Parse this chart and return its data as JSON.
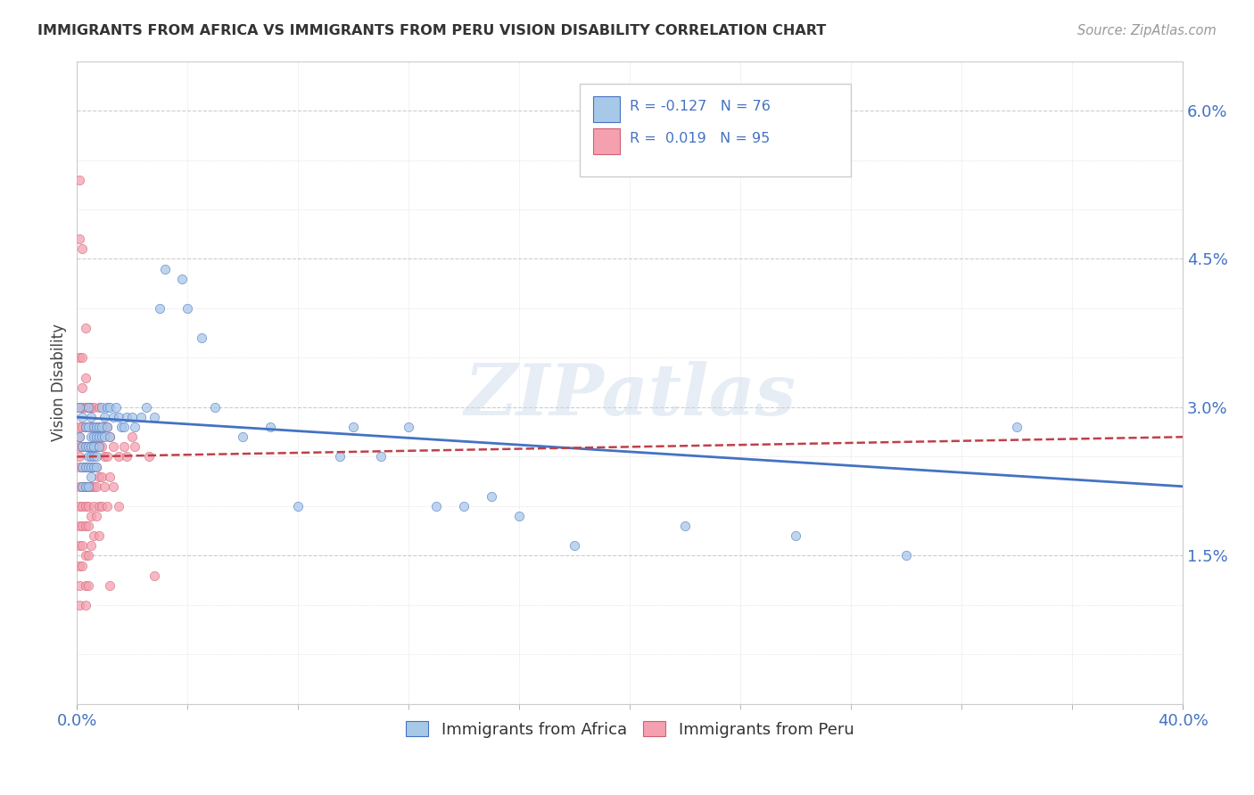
{
  "title": "IMMIGRANTS FROM AFRICA VS IMMIGRANTS FROM PERU VISION DISABILITY CORRELATION CHART",
  "source": "Source: ZipAtlas.com",
  "ylabel": "Vision Disability",
  "xlim": [
    0.0,
    0.4
  ],
  "ylim": [
    0.0,
    0.065
  ],
  "color_africa": "#a8c8e8",
  "color_peru": "#f4a0b0",
  "line_africa": "#4472c4",
  "line_peru": "#c0404a",
  "watermark": "ZIPatlas",
  "pt_size": 55,
  "africa_points": [
    [
      0.001,
      0.03
    ],
    [
      0.001,
      0.027
    ],
    [
      0.002,
      0.029
    ],
    [
      0.002,
      0.026
    ],
    [
      0.002,
      0.024
    ],
    [
      0.002,
      0.022
    ],
    [
      0.003,
      0.028
    ],
    [
      0.003,
      0.026
    ],
    [
      0.003,
      0.024
    ],
    [
      0.003,
      0.022
    ],
    [
      0.004,
      0.03
    ],
    [
      0.004,
      0.028
    ],
    [
      0.004,
      0.026
    ],
    [
      0.004,
      0.025
    ],
    [
      0.004,
      0.024
    ],
    [
      0.004,
      0.022
    ],
    [
      0.005,
      0.029
    ],
    [
      0.005,
      0.027
    ],
    [
      0.005,
      0.026
    ],
    [
      0.005,
      0.025
    ],
    [
      0.005,
      0.024
    ],
    [
      0.005,
      0.023
    ],
    [
      0.006,
      0.028
    ],
    [
      0.006,
      0.027
    ],
    [
      0.006,
      0.026
    ],
    [
      0.006,
      0.025
    ],
    [
      0.006,
      0.024
    ],
    [
      0.007,
      0.028
    ],
    [
      0.007,
      0.027
    ],
    [
      0.007,
      0.025
    ],
    [
      0.007,
      0.024
    ],
    [
      0.008,
      0.028
    ],
    [
      0.008,
      0.027
    ],
    [
      0.008,
      0.026
    ],
    [
      0.009,
      0.03
    ],
    [
      0.009,
      0.028
    ],
    [
      0.009,
      0.027
    ],
    [
      0.01,
      0.029
    ],
    [
      0.01,
      0.027
    ],
    [
      0.011,
      0.03
    ],
    [
      0.011,
      0.028
    ],
    [
      0.012,
      0.03
    ],
    [
      0.012,
      0.027
    ],
    [
      0.013,
      0.029
    ],
    [
      0.014,
      0.03
    ],
    [
      0.015,
      0.029
    ],
    [
      0.016,
      0.028
    ],
    [
      0.017,
      0.028
    ],
    [
      0.018,
      0.029
    ],
    [
      0.02,
      0.029
    ],
    [
      0.021,
      0.028
    ],
    [
      0.023,
      0.029
    ],
    [
      0.025,
      0.03
    ],
    [
      0.028,
      0.029
    ],
    [
      0.03,
      0.04
    ],
    [
      0.032,
      0.044
    ],
    [
      0.038,
      0.043
    ],
    [
      0.04,
      0.04
    ],
    [
      0.045,
      0.037
    ],
    [
      0.05,
      0.03
    ],
    [
      0.06,
      0.027
    ],
    [
      0.07,
      0.028
    ],
    [
      0.08,
      0.02
    ],
    [
      0.095,
      0.025
    ],
    [
      0.1,
      0.028
    ],
    [
      0.11,
      0.025
    ],
    [
      0.12,
      0.028
    ],
    [
      0.13,
      0.02
    ],
    [
      0.14,
      0.02
    ],
    [
      0.15,
      0.021
    ],
    [
      0.16,
      0.019
    ],
    [
      0.18,
      0.016
    ],
    [
      0.22,
      0.018
    ],
    [
      0.26,
      0.017
    ],
    [
      0.3,
      0.015
    ],
    [
      0.34,
      0.028
    ]
  ],
  "peru_points": [
    [
      0.001,
      0.053
    ],
    [
      0.001,
      0.047
    ],
    [
      0.001,
      0.035
    ],
    [
      0.001,
      0.03
    ],
    [
      0.001,
      0.028
    ],
    [
      0.001,
      0.026
    ],
    [
      0.001,
      0.024
    ],
    [
      0.001,
      0.022
    ],
    [
      0.001,
      0.02
    ],
    [
      0.001,
      0.018
    ],
    [
      0.001,
      0.016
    ],
    [
      0.001,
      0.014
    ],
    [
      0.001,
      0.012
    ],
    [
      0.001,
      0.01
    ],
    [
      0.001,
      0.027
    ],
    [
      0.001,
      0.025
    ],
    [
      0.002,
      0.046
    ],
    [
      0.002,
      0.035
    ],
    [
      0.002,
      0.032
    ],
    [
      0.002,
      0.03
    ],
    [
      0.002,
      0.028
    ],
    [
      0.002,
      0.026
    ],
    [
      0.002,
      0.024
    ],
    [
      0.002,
      0.022
    ],
    [
      0.002,
      0.02
    ],
    [
      0.002,
      0.018
    ],
    [
      0.002,
      0.016
    ],
    [
      0.002,
      0.014
    ],
    [
      0.003,
      0.038
    ],
    [
      0.003,
      0.033
    ],
    [
      0.003,
      0.03
    ],
    [
      0.003,
      0.028
    ],
    [
      0.003,
      0.026
    ],
    [
      0.003,
      0.024
    ],
    [
      0.003,
      0.022
    ],
    [
      0.003,
      0.02
    ],
    [
      0.003,
      0.018
    ],
    [
      0.003,
      0.015
    ],
    [
      0.003,
      0.012
    ],
    [
      0.003,
      0.01
    ],
    [
      0.004,
      0.03
    ],
    [
      0.004,
      0.028
    ],
    [
      0.004,
      0.026
    ],
    [
      0.004,
      0.024
    ],
    [
      0.004,
      0.022
    ],
    [
      0.004,
      0.02
    ],
    [
      0.004,
      0.018
    ],
    [
      0.004,
      0.015
    ],
    [
      0.004,
      0.012
    ],
    [
      0.005,
      0.03
    ],
    [
      0.005,
      0.028
    ],
    [
      0.005,
      0.026
    ],
    [
      0.005,
      0.024
    ],
    [
      0.005,
      0.022
    ],
    [
      0.005,
      0.019
    ],
    [
      0.005,
      0.016
    ],
    [
      0.006,
      0.03
    ],
    [
      0.006,
      0.028
    ],
    [
      0.006,
      0.026
    ],
    [
      0.006,
      0.024
    ],
    [
      0.006,
      0.022
    ],
    [
      0.006,
      0.02
    ],
    [
      0.006,
      0.017
    ],
    [
      0.007,
      0.028
    ],
    [
      0.007,
      0.026
    ],
    [
      0.007,
      0.024
    ],
    [
      0.007,
      0.022
    ],
    [
      0.007,
      0.019
    ],
    [
      0.008,
      0.03
    ],
    [
      0.008,
      0.028
    ],
    [
      0.008,
      0.026
    ],
    [
      0.008,
      0.023
    ],
    [
      0.008,
      0.02
    ],
    [
      0.008,
      0.017
    ],
    [
      0.009,
      0.028
    ],
    [
      0.009,
      0.026
    ],
    [
      0.009,
      0.023
    ],
    [
      0.009,
      0.02
    ],
    [
      0.01,
      0.028
    ],
    [
      0.01,
      0.025
    ],
    [
      0.01,
      0.022
    ],
    [
      0.011,
      0.028
    ],
    [
      0.011,
      0.025
    ],
    [
      0.011,
      0.02
    ],
    [
      0.012,
      0.027
    ],
    [
      0.012,
      0.023
    ],
    [
      0.012,
      0.012
    ],
    [
      0.013,
      0.026
    ],
    [
      0.013,
      0.022
    ],
    [
      0.015,
      0.025
    ],
    [
      0.015,
      0.02
    ],
    [
      0.017,
      0.026
    ],
    [
      0.018,
      0.025
    ],
    [
      0.02,
      0.027
    ],
    [
      0.021,
      0.026
    ],
    [
      0.026,
      0.025
    ],
    [
      0.028,
      0.013
    ]
  ],
  "africa_trendline": [
    0.029,
    0.022
  ],
  "peru_trendline": [
    0.025,
    0.027
  ]
}
